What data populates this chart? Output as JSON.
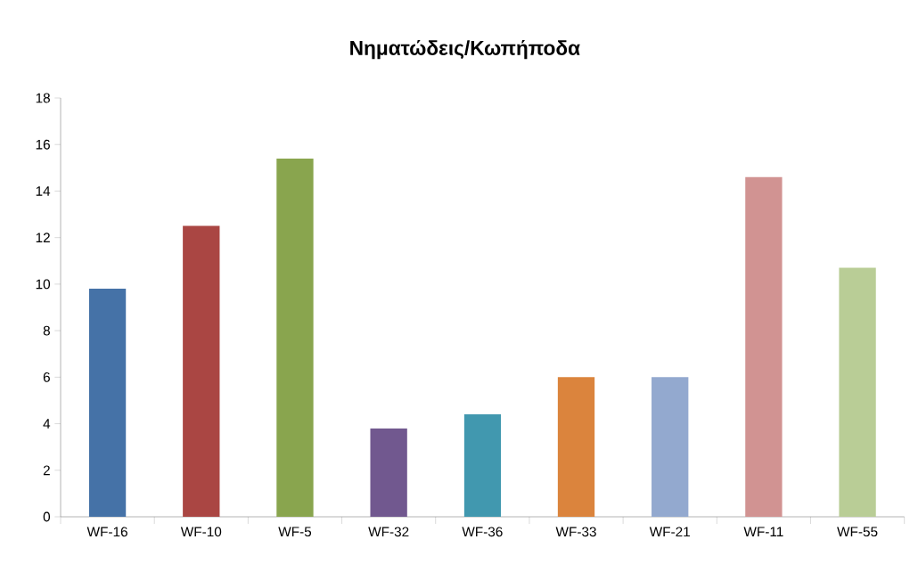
{
  "chart_data": {
    "type": "bar",
    "title": "Νηματώδεις/Κωπήποδα",
    "categories": [
      "WF-16",
      "WF-10",
      "WF-5",
      "WF-32",
      "WF-36",
      "WF-33",
      "WF-21",
      "WF-11",
      "WF-55"
    ],
    "values": [
      9.8,
      12.5,
      15.4,
      3.8,
      4.4,
      6.0,
      6.0,
      14.6,
      10.7
    ],
    "colors": [
      "#4572a7",
      "#aa4643",
      "#89a54e",
      "#71588f",
      "#4198af",
      "#db843d",
      "#93a9cf",
      "#d19392",
      "#b9cd96"
    ],
    "ylim": [
      0,
      18
    ],
    "yticks": [
      0,
      2,
      4,
      6,
      8,
      10,
      12,
      14,
      16,
      18
    ],
    "grid": false
  }
}
